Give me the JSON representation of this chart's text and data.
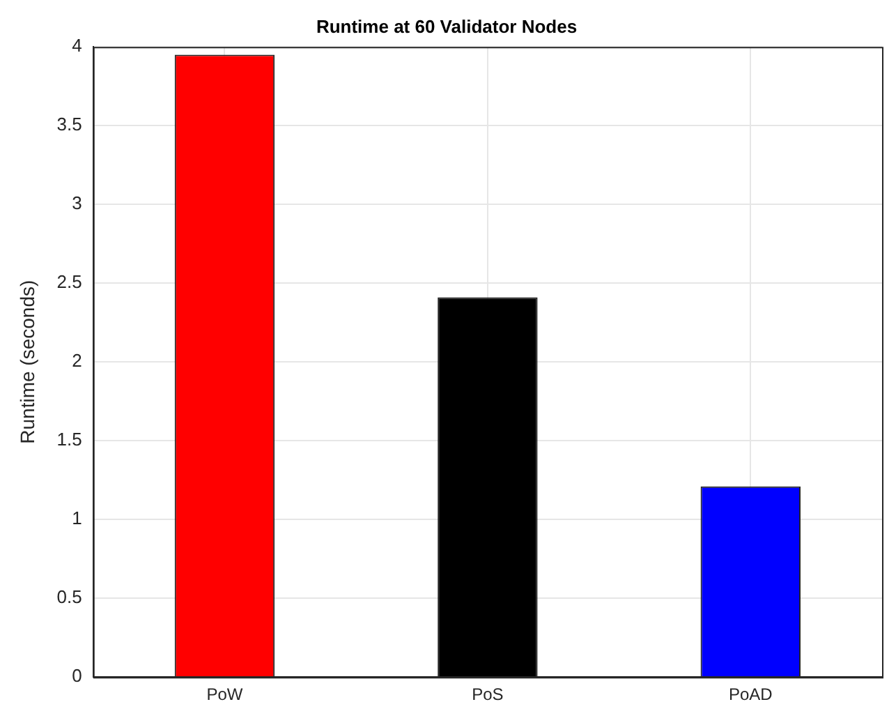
{
  "chart_data": {
    "type": "bar",
    "title": "Runtime at 60 Validator Nodes",
    "ylabel": "Runtime (seconds)",
    "categories": [
      "PoW",
      "PoS",
      "PoAD"
    ],
    "values": [
      3.95,
      2.41,
      1.21
    ],
    "colors": [
      "#ff0000",
      "#000000",
      "#0000ff"
    ],
    "ylim": [
      0,
      4
    ],
    "yticks": [
      0,
      0.5,
      1,
      1.5,
      2,
      2.5,
      3,
      3.5,
      4
    ],
    "grid": true
  }
}
